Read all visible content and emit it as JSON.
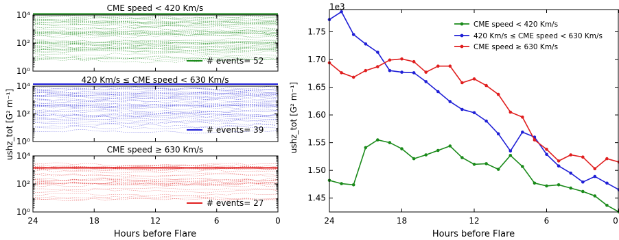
{
  "chart_data": [
    {
      "type": "line",
      "panel": "left-stacked",
      "ylabel": "ushz_tot  [G² m⁻¹]",
      "xlabel": "Hours before Flare",
      "x_ticks": [
        "24",
        "18",
        "12",
        "6",
        "0"
      ],
      "xlim": [
        24,
        0
      ],
      "y_scale": "log",
      "y_ticks": [
        "10⁰",
        "10²",
        "10⁴"
      ],
      "ylim": [
        1,
        10000
      ],
      "subplots": [
        {
          "title": "CME speed < 420 Km/s",
          "color": "#1a8a1a",
          "legend": "# events= 52",
          "mean_value": 12000,
          "n_events": 52
        },
        {
          "title": "420 Km/s ≤ CME speed < 630 Km/s",
          "color": "#1f1fd6",
          "legend": "# events= 39",
          "mean_value": 14000,
          "n_events": 39
        },
        {
          "title": "CME speed ≥ 630 Km/s",
          "color": "#e01e1e",
          "legend": "# events= 27",
          "mean_value": 1400,
          "n_events": 27
        }
      ]
    },
    {
      "type": "line",
      "panel": "right",
      "ylabel": "ushz_tot  [G² m⁻¹]",
      "xlabel": "Hours before Flare",
      "offset_label": "1e3",
      "x_ticks": [
        "24",
        "18",
        "12",
        "6",
        "0"
      ],
      "xlim": [
        24,
        0
      ],
      "y_ticks": [
        "1.45",
        "1.50",
        "1.55",
        "1.60",
        "1.65",
        "1.70",
        "1.75"
      ],
      "ylim": [
        1.425,
        1.79
      ],
      "legend_position": "top-right",
      "x": [
        24,
        23,
        22,
        21,
        20,
        19,
        18,
        17,
        16,
        15,
        14,
        13,
        12,
        11,
        10,
        9,
        8,
        7,
        6,
        5,
        4,
        3,
        2,
        1,
        0
      ],
      "series": [
        {
          "name": "CME speed < 420 Km/s",
          "color": "#1a8a1a",
          "values": [
            1.482,
            1.476,
            1.474,
            1.541,
            1.555,
            1.55,
            1.539,
            1.521,
            1.528,
            1.536,
            1.544,
            1.523,
            1.511,
            1.512,
            1.502,
            1.527,
            1.507,
            1.477,
            1.472,
            1.474,
            1.468,
            1.462,
            1.454,
            1.437,
            1.425
          ]
        },
        {
          "name": "420 Km/s ≤ CME speed < 630 Km/s",
          "color": "#1f1fd6",
          "values": [
            1.772,
            1.786,
            1.745,
            1.728,
            1.713,
            1.68,
            1.677,
            1.676,
            1.66,
            1.642,
            1.624,
            1.61,
            1.604,
            1.589,
            1.566,
            1.535,
            1.569,
            1.56,
            1.529,
            1.508,
            1.495,
            1.479,
            1.489,
            1.477,
            1.465
          ]
        },
        {
          "name": "CME speed ≥ 630 Km/s",
          "color": "#e01e1e",
          "values": [
            1.694,
            1.676,
            1.668,
            1.68,
            1.687,
            1.699,
            1.701,
            1.696,
            1.677,
            1.688,
            1.688,
            1.658,
            1.665,
            1.653,
            1.637,
            1.605,
            1.596,
            1.555,
            1.538,
            1.517,
            1.528,
            1.524,
            1.503,
            1.521,
            1.515
          ]
        }
      ]
    }
  ]
}
